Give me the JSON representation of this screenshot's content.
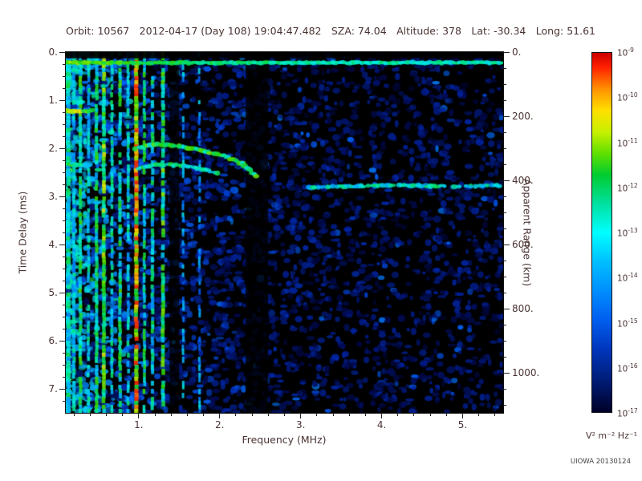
{
  "colors": {
    "text": "#4a3333",
    "axis": "#222222",
    "credit": "#444444",
    "background": "#ffffff"
  },
  "header": {
    "fields": [
      {
        "label": "Orbit:",
        "value": "10567"
      },
      {
        "label": "",
        "value": "2012-04-17 (Day 108) 19:04:47.482"
      },
      {
        "label": "SZA:",
        "value": "74.04"
      },
      {
        "label": "Altitude:",
        "value": "378"
      },
      {
        "label": "Lat:",
        "value": "-30.34"
      },
      {
        "label": "Long:",
        "value": "51.61"
      }
    ]
  },
  "footer": {
    "credit": "UIOWA 20130124"
  },
  "chart_data": {
    "type": "heatmap",
    "description": "Radar sounder ionogram: received spectral density vs frequency and time delay",
    "x_axis": {
      "label": "Frequency (MHz)",
      "min": 0.1,
      "max": 5.5,
      "ticks": [
        1,
        2,
        3,
        4,
        5
      ],
      "tick_labels": [
        "1.",
        "2.",
        "3.",
        "4.",
        "5."
      ],
      "minor_step": 0.2
    },
    "y_axis": {
      "label": "Time Delay (ms)",
      "min": 0,
      "max": 7.5,
      "ticks": [
        0,
        1,
        2,
        3,
        4,
        5,
        6,
        7
      ],
      "tick_labels": [
        "0.",
        "1.",
        "2.",
        "3.",
        "4.",
        "5.",
        "6.",
        "7."
      ],
      "minor_step": 0.25
    },
    "y2_axis": {
      "label": "Apparent Range (km)",
      "ticks_km": [
        0,
        200,
        400,
        600,
        800,
        1000
      ],
      "tick_labels": [
        "0.",
        "200.",
        "400.",
        "600.",
        "800.",
        "1000."
      ],
      "km_per_ms": 150,
      "minor_step_km": 50
    },
    "colorbar": {
      "units": "V² m⁻² Hz⁻¹",
      "tick_exponents": [
        -9,
        -10,
        -11,
        -12,
        -13,
        -14,
        -15,
        -16,
        -17
      ],
      "gradient": [
        [
          0,
          "#cc0000"
        ],
        [
          0.04,
          "#ff2000"
        ],
        [
          0.1,
          "#ff9000"
        ],
        [
          0.16,
          "#ffe000"
        ],
        [
          0.22,
          "#c8f000"
        ],
        [
          0.28,
          "#60e000"
        ],
        [
          0.34,
          "#00cc30"
        ],
        [
          0.42,
          "#00e0a0"
        ],
        [
          0.5,
          "#00ffff"
        ],
        [
          0.58,
          "#00c0ff"
        ],
        [
          0.66,
          "#0090ff"
        ],
        [
          0.74,
          "#0060f0"
        ],
        [
          0.82,
          "#0038c0"
        ],
        [
          0.9,
          "#002080"
        ],
        [
          1,
          "#000028"
        ]
      ]
    },
    "colormap": {
      "stops": [
        [
          0,
          "#000006"
        ],
        [
          0.1,
          "#000a50"
        ],
        [
          0.22,
          "#0028b0"
        ],
        [
          0.34,
          "#0066ff"
        ],
        [
          0.46,
          "#00b4ff"
        ],
        [
          0.55,
          "#00f0e0"
        ],
        [
          0.63,
          "#00e070"
        ],
        [
          0.72,
          "#30d800"
        ],
        [
          0.82,
          "#b0f000"
        ],
        [
          0.9,
          "#ffd800"
        ],
        [
          1,
          "#ff3000"
        ]
      ]
    },
    "features": {
      "top_band": {
        "t_ms": 0.22,
        "f0": 0.1,
        "f1": 5.5,
        "intensity": 0.55
      },
      "dark_top_row": {
        "t0": 0,
        "t1": 0.13
      },
      "vertical_bands": [
        [
          0.13,
          0.05,
          0.55,
          0.95
        ],
        [
          0.2,
          0.04,
          0.5,
          0.8
        ],
        [
          0.28,
          0.04,
          0.62,
          0.88
        ],
        [
          0.38,
          0.035,
          0.52,
          0.72
        ],
        [
          0.48,
          0.04,
          0.6,
          0.85
        ],
        [
          0.57,
          0.045,
          0.72,
          0.92
        ],
        [
          0.67,
          0.035,
          0.55,
          0.75
        ],
        [
          0.77,
          0.04,
          0.62,
          0.8
        ],
        [
          0.87,
          0.035,
          0.52,
          0.7
        ],
        [
          0.97,
          0.05,
          0.9,
          0.98
        ],
        [
          1.07,
          0.035,
          0.6,
          0.72
        ],
        [
          1.17,
          0.04,
          0.56,
          0.7
        ],
        [
          1.3,
          0.045,
          0.66,
          0.8
        ],
        [
          1.55,
          0.03,
          0.45,
          0.45
        ],
        [
          1.75,
          0.03,
          0.42,
          0.4
        ]
      ],
      "dark_bands": [
        [
          1.38,
          1.5,
          0.78
        ],
        [
          2.32,
          2.6,
          0.82
        ]
      ],
      "traces": [
        {
          "name": "plasma-streak-1",
          "intensity": 0.72,
          "gap": 0,
          "points": [
            [
              0.1,
              1.22
            ],
            [
              0.42,
              1.22
            ]
          ]
        },
        {
          "name": "plasma-streak-2",
          "intensity": 0.58,
          "gap": 0.1,
          "points": [
            [
              0.1,
              2.32
            ],
            [
              0.38,
              2.35
            ]
          ]
        },
        {
          "name": "ionospheric-echo-upper",
          "intensity": 0.62,
          "gap": 0.05,
          "points": [
            [
              0.95,
              2.0
            ],
            [
              1.2,
              1.92
            ],
            [
              1.5,
              1.95
            ],
            [
              1.8,
              2.05
            ],
            [
              2.05,
              2.15
            ],
            [
              2.28,
              2.32
            ],
            [
              2.45,
              2.58
            ]
          ]
        },
        {
          "name": "ionospheric-echo-lower",
          "intensity": 0.55,
          "gap": 0.08,
          "points": [
            [
              1.0,
              2.42
            ],
            [
              1.25,
              2.33
            ],
            [
              1.55,
              2.36
            ],
            [
              1.8,
              2.44
            ],
            [
              2.0,
              2.54
            ]
          ]
        },
        {
          "name": "surface-reflection",
          "intensity": 0.52,
          "gap": 0.25,
          "points": [
            [
              3.1,
              2.82
            ],
            [
              3.6,
              2.79
            ],
            [
              4.1,
              2.77
            ],
            [
              4.6,
              2.78
            ],
            [
              5.1,
              2.79
            ],
            [
              5.45,
              2.78
            ]
          ]
        }
      ]
    },
    "render": {
      "seed": 20130124,
      "left_count": 2300,
      "left_bias": 1.7,
      "uniform_count": 1500
    }
  }
}
